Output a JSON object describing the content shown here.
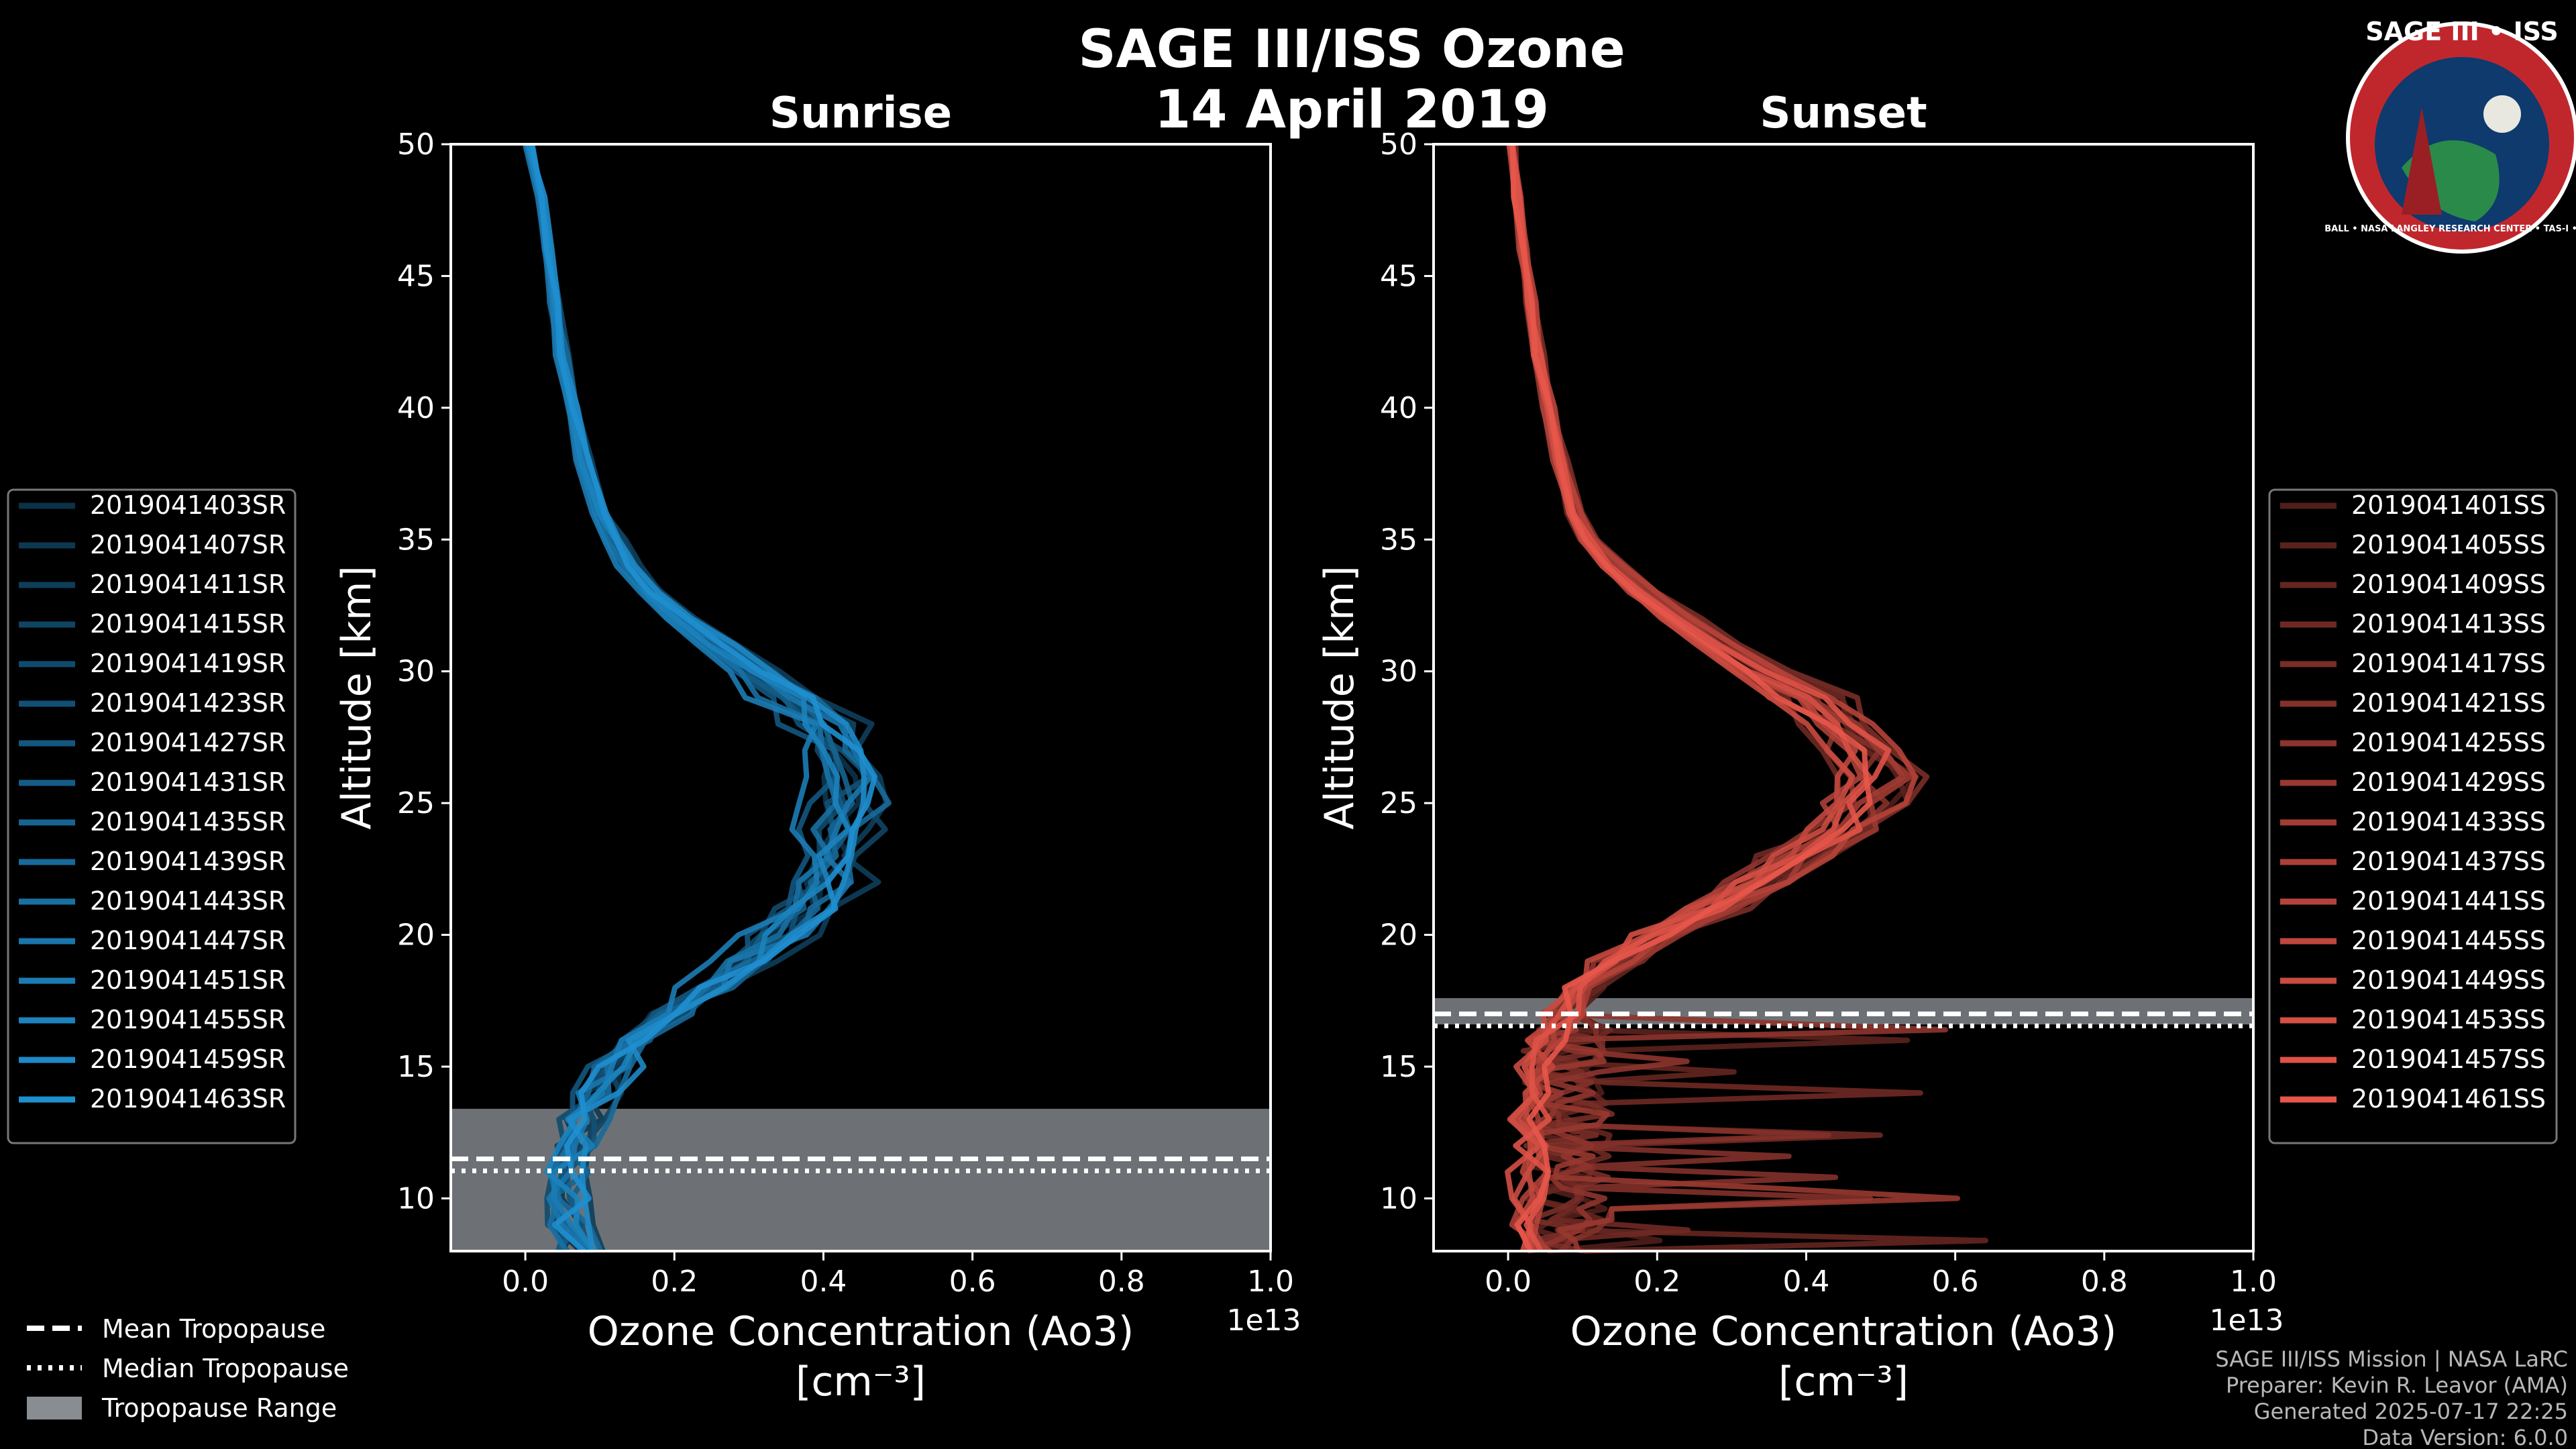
{
  "title": "SAGE III/ISS Ozone",
  "date": "14 April 2019",
  "logo": {
    "title": "SAGE III • ISS",
    "ring_text": "BALL • NASA LANGLEY RESEARCH CENTER • TAS-I • ESA"
  },
  "credits": [
    "SAGE III/ISS Mission | NASA LaRC",
    "Preparer: Kevin R. Leavor (AMA)",
    "Generated 2025-07-17 22:25",
    "Data Version: 6.0.0"
  ],
  "tropopause_legend": [
    "Mean Tropopause",
    "Median Tropopause",
    "Tropopause Range"
  ],
  "colors": {
    "sunrise": "#1f8fd0",
    "sunset": "#e8564a",
    "tropopause_range": "#888d92"
  },
  "chart_data": [
    {
      "type": "line",
      "title": "Sunrise",
      "xlabel": "Ozone Concentration (Ao3)",
      "xlabel_units": "[cm⁻³]",
      "ylabel": "Altitude [km]",
      "x_offset_label": "1e13",
      "xlim": [
        -0.1,
        1.0
      ],
      "ylim": [
        8,
        50
      ],
      "xticks": [
        "0.0",
        "0.2",
        "0.4",
        "0.6",
        "0.8",
        "1.0"
      ],
      "yticks": [
        "10",
        "15",
        "20",
        "25",
        "30",
        "35",
        "40",
        "45",
        "50"
      ],
      "tropopause": {
        "mean": 11.5,
        "median": 11.3,
        "range": [
          8,
          13.4
        ]
      },
      "series_names": [
        "2019041403SR",
        "2019041407SR",
        "2019041411SR",
        "2019041415SR",
        "2019041419SR",
        "2019041423SR",
        "2019041427SR",
        "2019041431SR",
        "2019041435SR",
        "2019041439SR",
        "2019041443SR",
        "2019041447SR",
        "2019041451SR",
        "2019041455SR",
        "2019041459SR",
        "2019041463SR"
      ],
      "base_profile": {
        "y": [
          8,
          9,
          10,
          11,
          12,
          13,
          14,
          15,
          16,
          17,
          18,
          19,
          20,
          21,
          22,
          23,
          24,
          25,
          26,
          27,
          28,
          29,
          30,
          31,
          32,
          33,
          34,
          35,
          36,
          38,
          40,
          42,
          44,
          46,
          48,
          50
        ],
        "x": [
          0.07,
          0.06,
          0.06,
          0.06,
          0.07,
          0.08,
          0.1,
          0.12,
          0.15,
          0.19,
          0.25,
          0.3,
          0.35,
          0.39,
          0.41,
          0.42,
          0.43,
          0.44,
          0.44,
          0.43,
          0.4,
          0.36,
          0.31,
          0.26,
          0.21,
          0.17,
          0.14,
          0.12,
          0.1,
          0.08,
          0.065,
          0.05,
          0.04,
          0.03,
          0.02,
          0.005
        ]
      }
    },
    {
      "type": "line",
      "title": "Sunset",
      "xlabel": "Ozone Concentration (Ao3)",
      "xlabel_units": "[cm⁻³]",
      "ylabel": "Altitude [km]",
      "x_offset_label": "1e13",
      "xlim": [
        -0.1,
        1.0
      ],
      "ylim": [
        8,
        50
      ],
      "xticks": [
        "0.0",
        "0.2",
        "0.4",
        "0.6",
        "0.8",
        "1.0"
      ],
      "yticks": [
        "10",
        "15",
        "20",
        "25",
        "30",
        "35",
        "40",
        "45",
        "50"
      ],
      "tropopause": {
        "mean": 17.0,
        "median": 16.8,
        "range": [
          16.6,
          17.6
        ]
      },
      "series_names": [
        "2019041401SS",
        "2019041405SS",
        "2019041409SS",
        "2019041413SS",
        "2019041417SS",
        "2019041421SS",
        "2019041425SS",
        "2019041429SS",
        "2019041433SS",
        "2019041437SS",
        "2019041441SS",
        "2019041445SS",
        "2019041449SS",
        "2019041453SS",
        "2019041457SS",
        "2019041461SS"
      ],
      "base_profile": {
        "y": [
          8,
          9,
          10,
          11,
          12,
          13,
          14,
          15,
          16,
          17,
          18,
          19,
          20,
          21,
          22,
          23,
          24,
          25,
          26,
          27,
          28,
          29,
          30,
          31,
          32,
          33,
          34,
          35,
          36,
          38,
          40,
          42,
          44,
          46,
          48,
          50
        ],
        "x": [
          0.04,
          0.03,
          0.03,
          0.03,
          0.03,
          0.03,
          0.03,
          0.04,
          0.05,
          0.07,
          0.1,
          0.14,
          0.2,
          0.27,
          0.34,
          0.4,
          0.45,
          0.48,
          0.49,
          0.48,
          0.45,
          0.4,
          0.34,
          0.28,
          0.23,
          0.18,
          0.14,
          0.11,
          0.09,
          0.07,
          0.055,
          0.04,
          0.03,
          0.02,
          0.012,
          0.005
        ]
      }
    }
  ]
}
